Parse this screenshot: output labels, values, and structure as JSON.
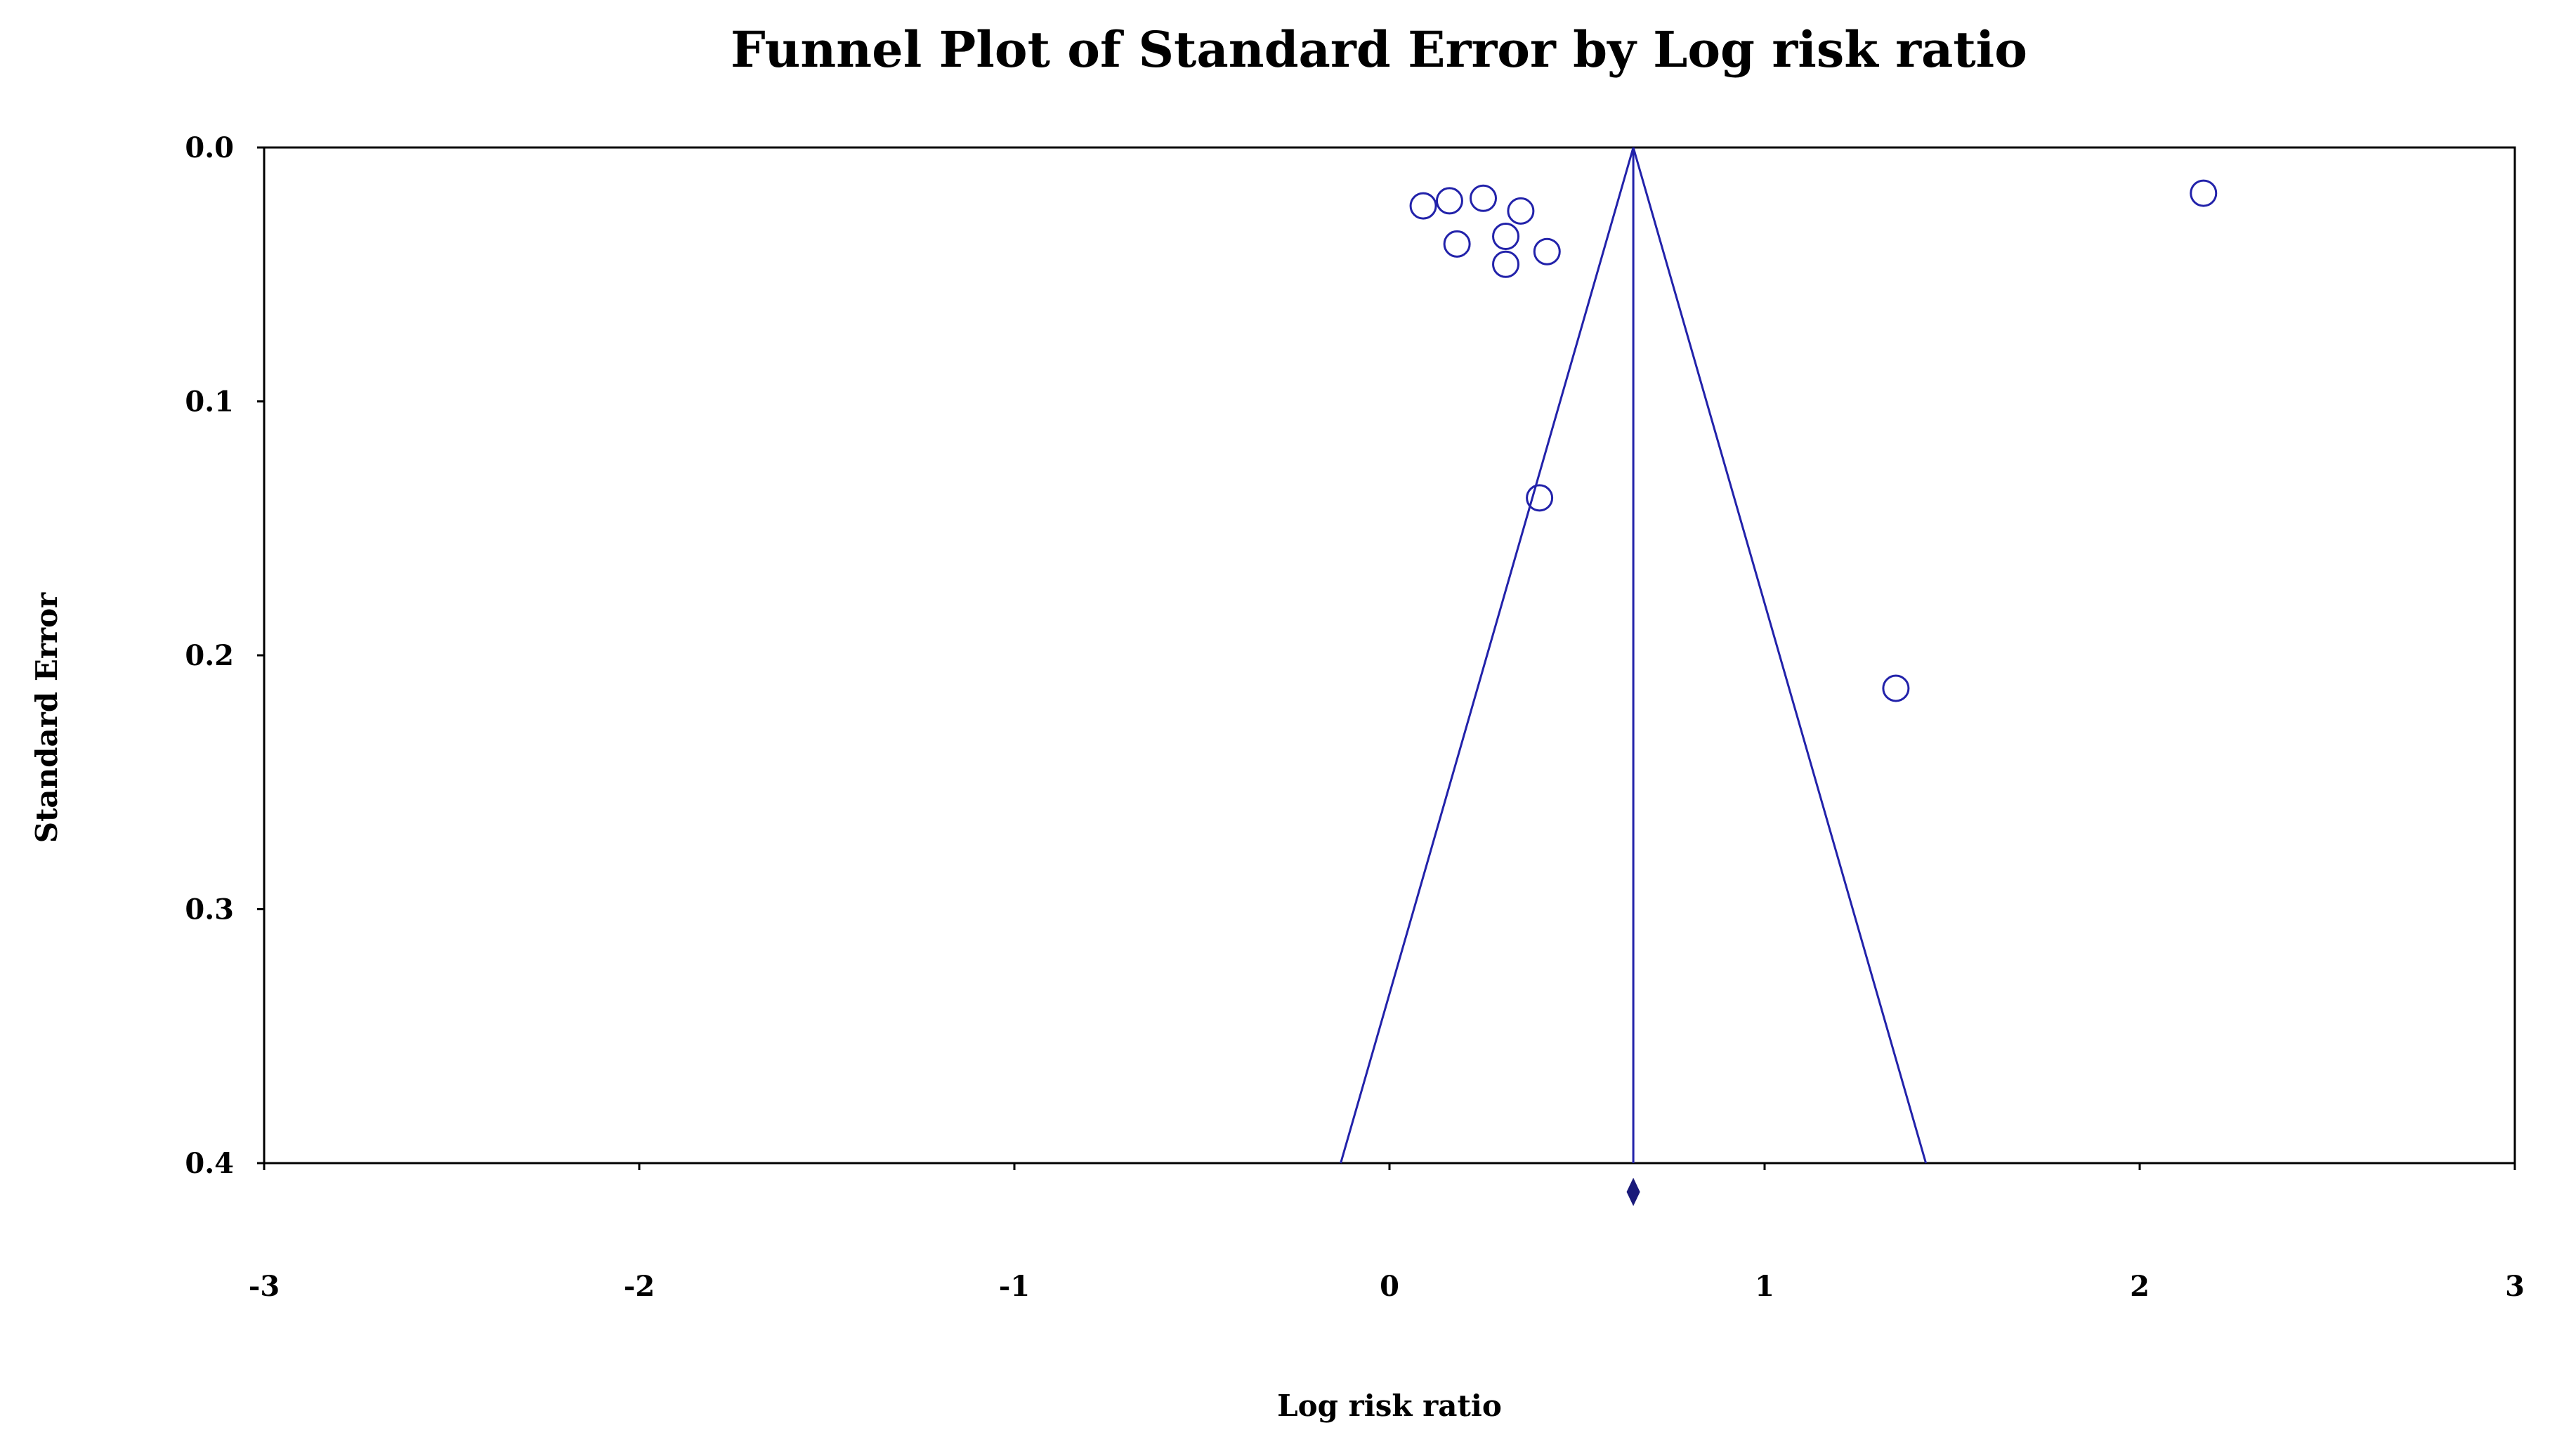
{
  "chart_data": {
    "type": "scatter",
    "title": "Funnel Plot of Standard Error by Log risk ratio",
    "xlabel": "Log risk ratio",
    "ylabel": "Standard Error",
    "xlim": [
      -3,
      3
    ],
    "ylim": [
      0.0,
      0.4
    ],
    "y_inverted": true,
    "x_ticks": [
      -3,
      -2,
      -1,
      0,
      1,
      2,
      3
    ],
    "x_tick_labels": [
      "-3",
      "-2",
      "-1",
      "0",
      "1",
      "2",
      "3"
    ],
    "y_ticks": [
      0.0,
      0.1,
      0.2,
      0.3,
      0.4
    ],
    "y_tick_labels": [
      "0.0",
      "0.1",
      "0.2",
      "0.3",
      "0.4"
    ],
    "grid": false,
    "pooled_estimate": 0.65,
    "funnel": {
      "apex": [
        0.65,
        0.0
      ],
      "left_base": [
        -0.13,
        0.4
      ],
      "right_base": [
        1.43,
        0.4
      ]
    },
    "series": [
      {
        "points": [
          {
            "x": 0.09,
            "y": 0.023
          },
          {
            "x": 0.16,
            "y": 0.021
          },
          {
            "x": 0.25,
            "y": 0.02
          },
          {
            "x": 0.35,
            "y": 0.025
          },
          {
            "x": 0.31,
            "y": 0.035
          },
          {
            "x": 0.18,
            "y": 0.038
          },
          {
            "x": 0.42,
            "y": 0.041
          },
          {
            "x": 0.31,
            "y": 0.046
          },
          {
            "x": 2.17,
            "y": 0.018
          },
          {
            "x": 0.4,
            "y": 0.138
          },
          {
            "x": 1.35,
            "y": 0.213
          }
        ]
      }
    ],
    "colors": {
      "points": "#2222aa",
      "funnel": "#2222aa",
      "diamond": "#1a1a7a",
      "frame": "#000000"
    }
  }
}
